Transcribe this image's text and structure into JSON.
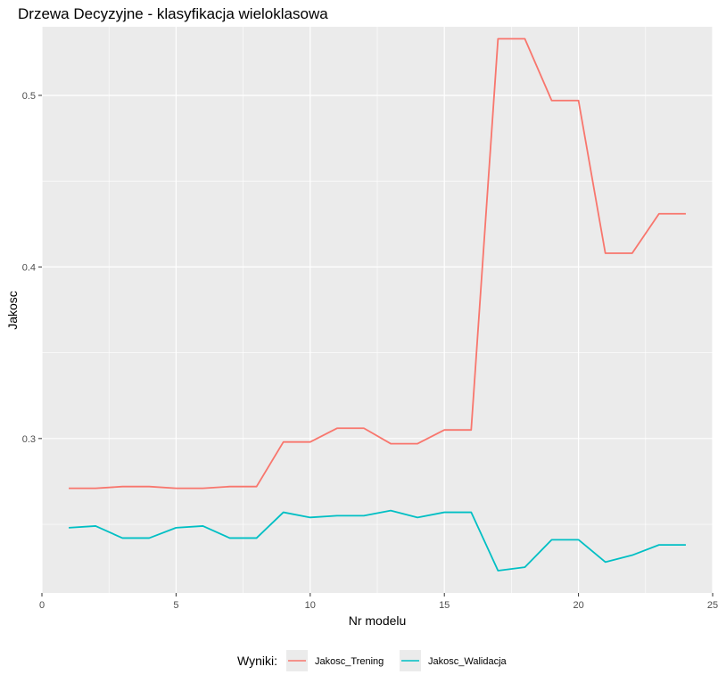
{
  "chart_data": {
    "type": "line",
    "title": "Drzewa Decyzyjne - klasyfikacja wieloklasowa",
    "xlabel": "Nr modelu",
    "ylabel": "Jakosc",
    "xlim": [
      0,
      25
    ],
    "ylim": [
      0.21,
      0.54
    ],
    "x_ticks": [
      0,
      5,
      10,
      15,
      20,
      25
    ],
    "y_ticks": [
      0.3,
      0.4,
      0.5
    ],
    "x_tick_labels": [
      "0",
      "5",
      "10",
      "15",
      "20",
      "25"
    ],
    "y_tick_labels": [
      "0.3",
      "0.4",
      "0.5"
    ],
    "grid": true,
    "legend_title": "Wyniki:",
    "legend_position": "bottom",
    "x": [
      1,
      2,
      3,
      4,
      5,
      6,
      7,
      8,
      9,
      10,
      11,
      12,
      13,
      14,
      15,
      16,
      17,
      18,
      19,
      20,
      21,
      22,
      23,
      24
    ],
    "series": [
      {
        "name": "Jakosc_Trening",
        "color": "#f8766d",
        "values": [
          0.271,
          0.271,
          0.272,
          0.272,
          0.271,
          0.271,
          0.272,
          0.272,
          0.298,
          0.298,
          0.306,
          0.306,
          0.297,
          0.297,
          0.305,
          0.305,
          0.533,
          0.533,
          0.497,
          0.497,
          0.408,
          0.408,
          0.431,
          0.431
        ]
      },
      {
        "name": "Jakosc_Walidacja",
        "color": "#00bfc4",
        "values": [
          0.248,
          0.249,
          0.242,
          0.242,
          0.248,
          0.249,
          0.242,
          0.242,
          0.257,
          0.254,
          0.255,
          0.255,
          0.258,
          0.254,
          0.257,
          0.257,
          0.223,
          0.225,
          0.241,
          0.241,
          0.228,
          0.232,
          0.238,
          0.238
        ]
      }
    ]
  }
}
